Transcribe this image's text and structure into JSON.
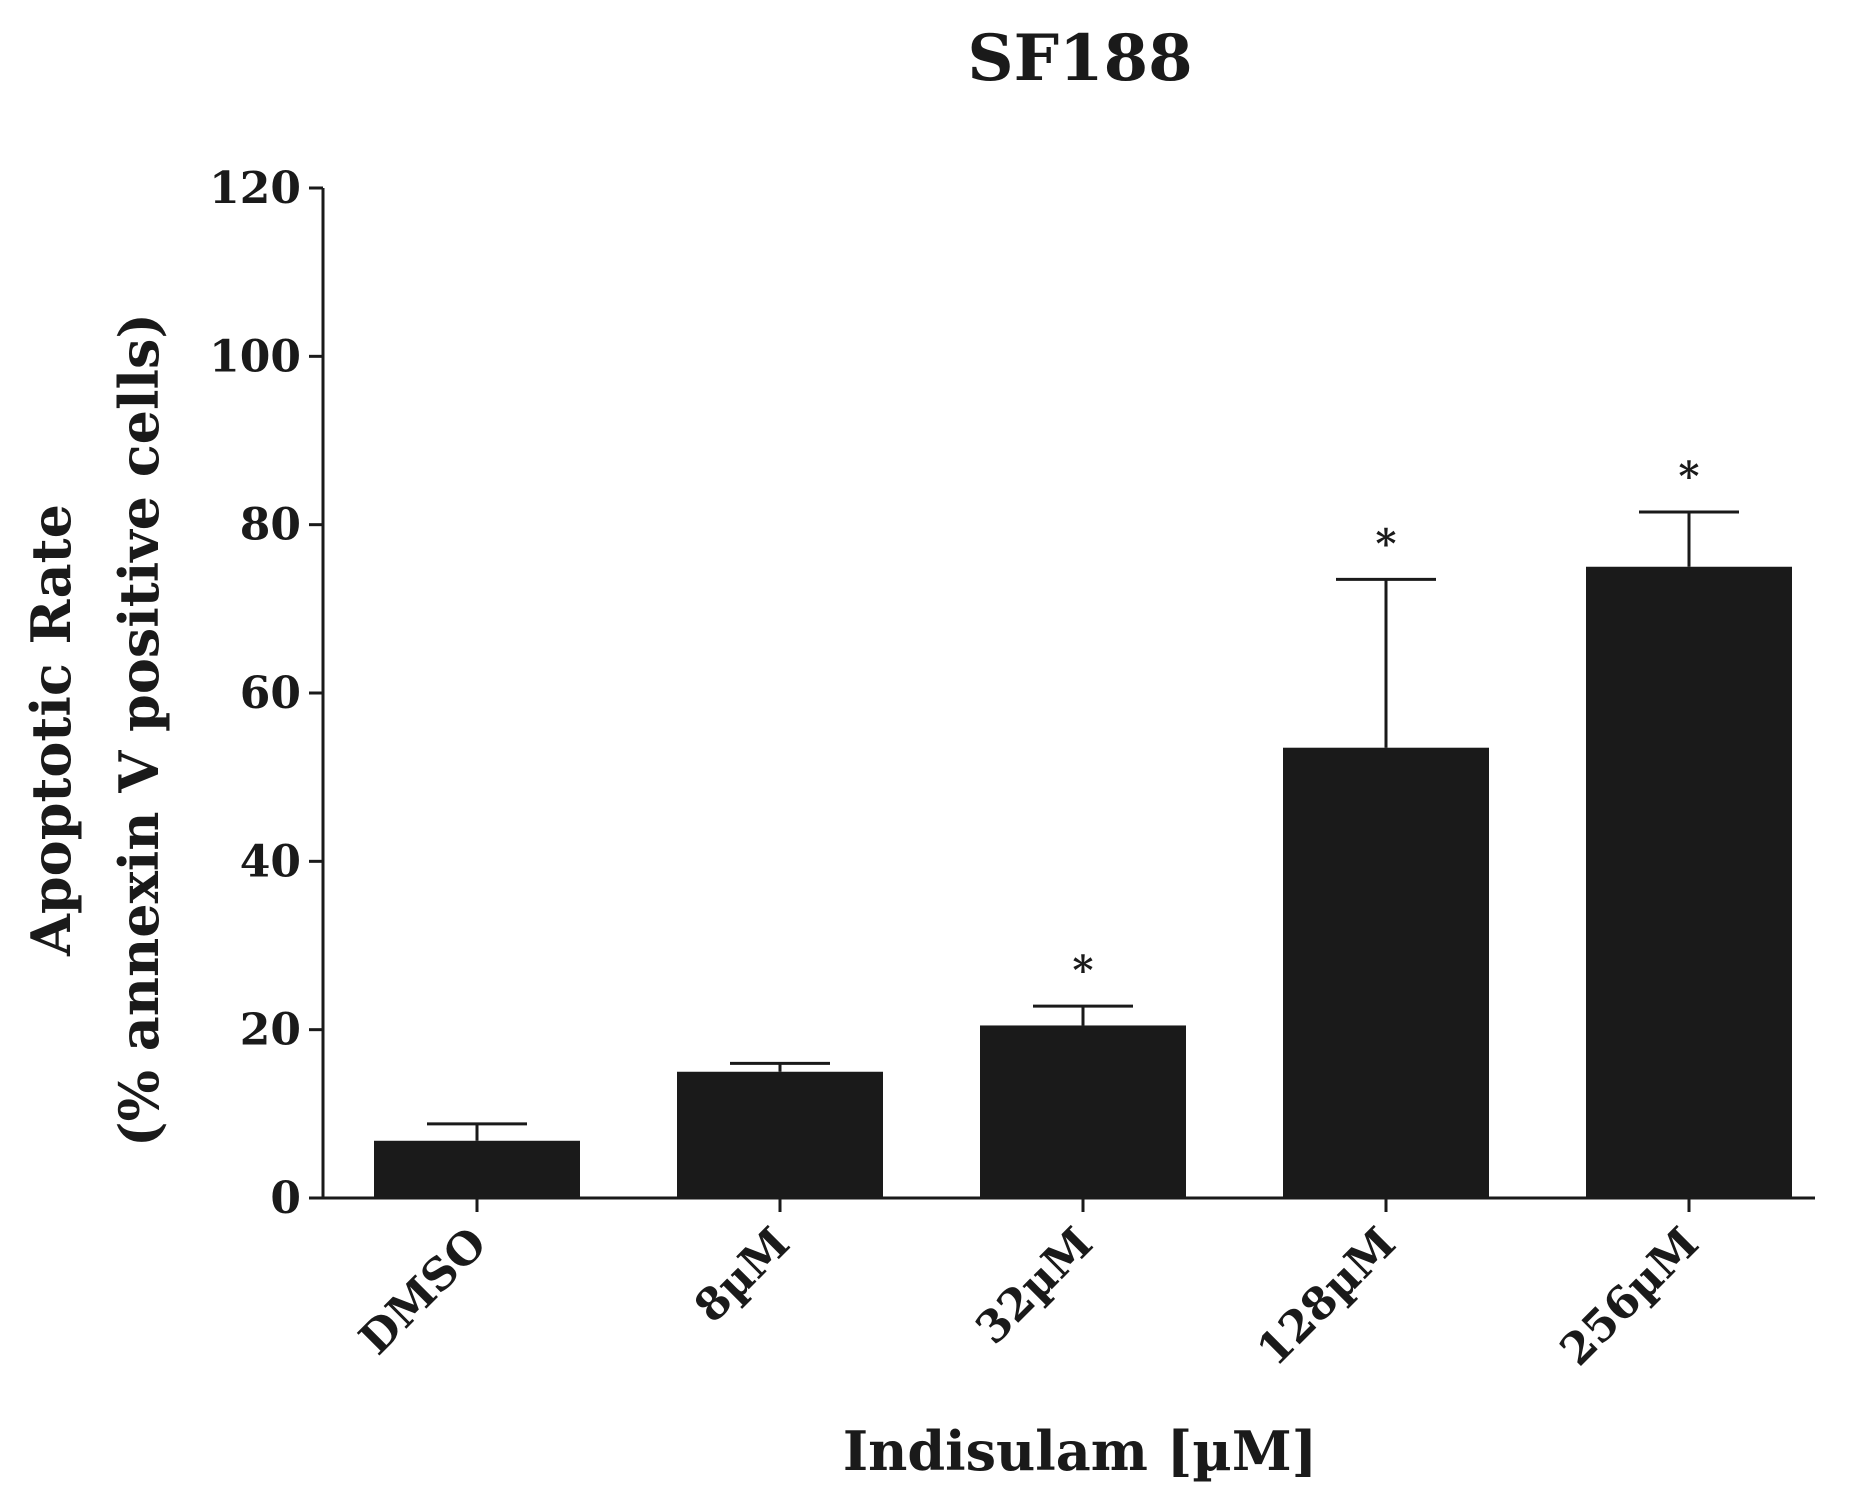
{
  "chart_data": {
    "type": "bar",
    "title": "SF188",
    "categories": [
      "DMSO",
      "8µM",
      "32µM",
      "128µM",
      "256µM"
    ],
    "values": [
      6.8,
      15.0,
      20.5,
      53.5,
      75.0
    ],
    "errors": [
      2.0,
      1.0,
      2.3,
      20.0,
      6.5
    ],
    "significance": [
      "",
      "",
      "*",
      "*",
      "*"
    ],
    "xlabel": "Indisulam [µM]",
    "ylabel_line1": "Apoptotic Rate",
    "ylabel_line2": "(% annexin V positive cells)",
    "ylim": [
      0,
      120
    ],
    "yticks": [
      0,
      20,
      40,
      60,
      80,
      100,
      120
    ],
    "grid": false,
    "bar_color": "#1a1a1a"
  }
}
